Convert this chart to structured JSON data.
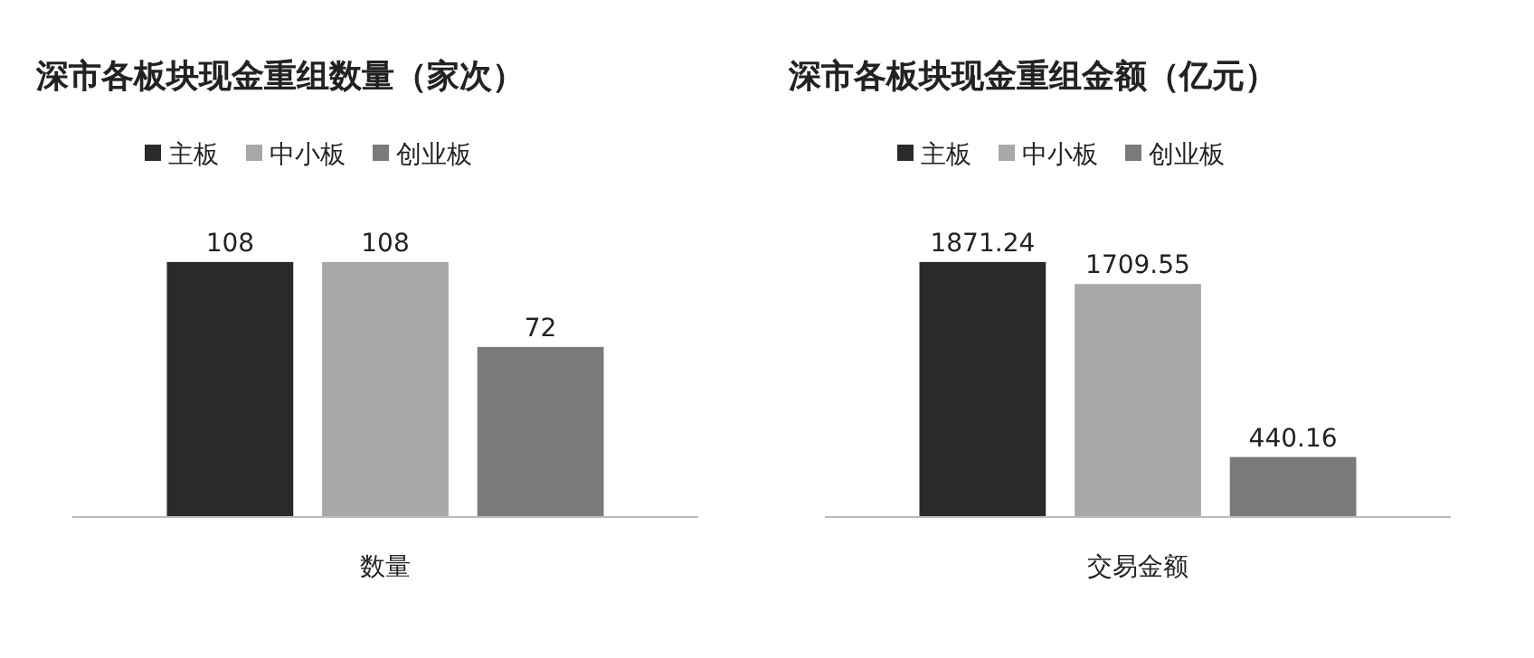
{
  "chart_data": [
    {
      "type": "bar",
      "title": "深市各板块现金重组数量（家次）",
      "categories": [
        null,
        "数量",
        null
      ],
      "stacked": true,
      "series": [
        {
          "name": "主板",
          "color": "#2a2a2a",
          "values": [
            108,
            null,
            null
          ]
        },
        {
          "name": "中小板",
          "color": "#a8a8a8",
          "values": [
            null,
            108,
            null
          ]
        },
        {
          "name": "创业板",
          "color": "#7a7a7a",
          "values": [
            null,
            null,
            72
          ]
        }
      ],
      "data_labels": true,
      "legend": "top",
      "grid": false
    },
    {
      "type": "bar",
      "title": "深市各板块现金重组金额（亿元）",
      "categories": [
        null,
        "交易金额",
        null
      ],
      "stacked": true,
      "series": [
        {
          "name": "主板",
          "color": "#2a2a2a",
          "values": [
            1871.24,
            null,
            null
          ]
        },
        {
          "name": "中小板",
          "color": "#a8a8a8",
          "values": [
            null,
            1709.55,
            null
          ]
        },
        {
          "name": "创业板",
          "color": "#7a7a7a",
          "values": [
            null,
            null,
            440.16
          ]
        }
      ],
      "data_labels": true,
      "legend": "top",
      "grid": false
    }
  ]
}
